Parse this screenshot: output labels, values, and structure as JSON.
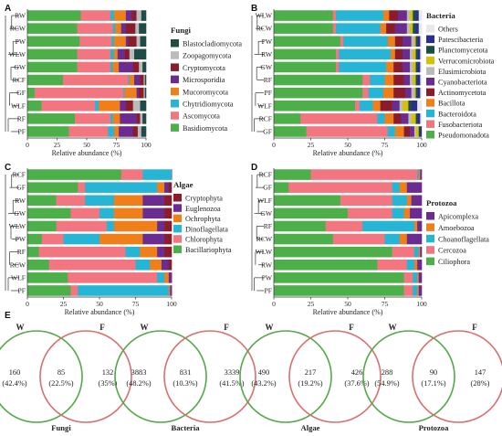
{
  "panel_labels": [
    "A",
    "B",
    "C",
    "D",
    "E"
  ],
  "axis_xlabel": "Relative abundance (%)",
  "ticks": [
    "0",
    "25",
    "50",
    "75",
    "100"
  ],
  "chart_data": [
    {
      "id": "A",
      "type": "bar",
      "orientation": "horizontal",
      "stacked": true,
      "title": "Fungi",
      "xlabel": "Relative abundance (%)",
      "xlim": [
        0,
        100
      ],
      "categories": [
        "RW",
        "RCW",
        "PW",
        "WLW",
        "GW",
        "RCF",
        "GF",
        "WLF",
        "RF",
        "PF"
      ],
      "legend_placement": "right",
      "series": [
        {
          "name": "Basidiomycota",
          "color": "#4daf4a",
          "values": [
            45,
            42,
            44,
            42,
            42,
            30,
            6,
            12,
            40,
            35
          ]
        },
        {
          "name": "Ascomycota",
          "color": "#f27580",
          "values": [
            25,
            30,
            27,
            28,
            28,
            55,
            75,
            45,
            30,
            33
          ]
        },
        {
          "name": "Chytridiomycota",
          "color": "#26b5d4",
          "values": [
            3,
            2,
            2,
            3,
            2,
            1,
            1,
            3,
            2,
            5
          ]
        },
        {
          "name": "Mucoromycota",
          "color": "#f07f1a",
          "values": [
            10,
            5,
            10,
            3,
            5,
            4,
            10,
            18,
            6,
            4
          ]
        },
        {
          "name": "Microsporidia",
          "color": "#6a2c91",
          "values": [
            5,
            4,
            2,
            6,
            12,
            5,
            2,
            5,
            14,
            12
          ]
        },
        {
          "name": "Cryptomycota",
          "color": "#8b1c2c",
          "values": [
            4,
            8,
            7,
            4,
            5,
            3,
            4,
            6,
            3,
            4
          ]
        },
        {
          "name": "Zoopagomycota",
          "color": "#bbbbbb",
          "values": [
            4,
            3,
            3,
            4,
            3,
            1,
            1,
            6,
            2,
            3
          ]
        },
        {
          "name": "Blastocladiomycota",
          "color": "#1f4d46",
          "values": [
            4,
            6,
            5,
            10,
            3,
            1,
            1,
            5,
            3,
            4
          ]
        }
      ]
    },
    {
      "id": "B",
      "type": "bar",
      "orientation": "horizontal",
      "stacked": true,
      "title": "Bacteria",
      "xlabel": "Relative abundance (%)",
      "xlim": [
        0,
        100
      ],
      "categories": [
        "WLW",
        "RCW",
        "PW",
        "RW",
        "GW",
        "RF",
        "PF",
        "WLF",
        "RCF",
        "GF"
      ],
      "legend_placement": "right",
      "series": [
        {
          "name": "Pseudomonadota",
          "color": "#4daf4a",
          "values": [
            40,
            40,
            45,
            42,
            42,
            60,
            60,
            55,
            18,
            22
          ]
        },
        {
          "name": "Fusobacteriota",
          "color": "#f27580",
          "values": [
            2,
            2,
            2,
            2,
            2,
            5,
            4,
            3,
            52,
            55
          ]
        },
        {
          "name": "Bacteroidota",
          "color": "#26b5d4",
          "values": [
            32,
            30,
            30,
            35,
            32,
            10,
            10,
            9,
            5,
            5
          ]
        },
        {
          "name": "Bacillota",
          "color": "#f07f1a",
          "values": [
            4,
            4,
            5,
            3,
            5,
            6,
            7,
            5,
            6,
            6
          ]
        },
        {
          "name": "Actinomycetota",
          "color": "#8b1c2c",
          "values": [
            6,
            6,
            5,
            5,
            6,
            7,
            8,
            8,
            5,
            4
          ]
        },
        {
          "name": "Cyanobacteriota",
          "color": "#6a2c91",
          "values": [
            6,
            8,
            6,
            5,
            5,
            4,
            4,
            5,
            5,
            3
          ]
        },
        {
          "name": "Elusimicrobiota",
          "color": "#bbbbbb",
          "values": [
            2,
            2,
            2,
            2,
            2,
            2,
            2,
            2,
            2,
            1
          ]
        },
        {
          "name": "Verrucomicrobiota",
          "color": "#d4c20a",
          "values": [
            2,
            2,
            1,
            2,
            2,
            2,
            1,
            4,
            3,
            2
          ]
        },
        {
          "name": "Planctomycetota",
          "color": "#1f4d46",
          "values": [
            2,
            2,
            1,
            1,
            1,
            1,
            1,
            2,
            1,
            1
          ]
        },
        {
          "name": "Patescibacteria",
          "color": "#2a2f8f",
          "values": [
            2,
            2,
            2,
            2,
            2,
            2,
            2,
            4,
            2,
            1
          ]
        },
        {
          "name": "Others",
          "color": "#e8e8e8",
          "values": [
            2,
            2,
            1,
            1,
            1,
            1,
            1,
            3,
            1,
            0
          ]
        }
      ]
    },
    {
      "id": "C",
      "type": "bar",
      "orientation": "horizontal",
      "stacked": true,
      "title": "Algae",
      "xlabel": "Relative abundance (%)",
      "xlim": [
        0,
        100
      ],
      "categories": [
        "RCF",
        "GF",
        "RW",
        "GW",
        "WLW",
        "PW",
        "RF",
        "RCW",
        "WLF",
        "PF"
      ],
      "legend_placement": "right",
      "series": [
        {
          "name": "Bacillariophyta",
          "color": "#4daf4a",
          "values": [
            65,
            35,
            20,
            30,
            20,
            10,
            8,
            15,
            28,
            30
          ]
        },
        {
          "name": "Chlorophyta",
          "color": "#f27580",
          "values": [
            15,
            5,
            20,
            20,
            35,
            15,
            60,
            60,
            62,
            5
          ]
        },
        {
          "name": "Dinoflagellata",
          "color": "#26b5d4",
          "values": [
            20,
            50,
            20,
            10,
            5,
            25,
            10,
            10,
            5,
            63
          ]
        },
        {
          "name": "Ochrophyta",
          "color": "#f07f1a",
          "values": [
            0,
            5,
            20,
            20,
            30,
            30,
            12,
            8,
            3,
            1
          ]
        },
        {
          "name": "Euglenozoa",
          "color": "#6a2c91",
          "values": [
            0,
            3,
            15,
            15,
            5,
            15,
            5,
            5,
            2,
            1
          ]
        },
        {
          "name": "Cryptophyta",
          "color": "#8b1c2c",
          "values": [
            0,
            2,
            5,
            5,
            5,
            5,
            5,
            2,
            0,
            0
          ]
        }
      ]
    },
    {
      "id": "D",
      "type": "bar",
      "orientation": "horizontal",
      "stacked": true,
      "title": "Protozoa",
      "xlabel": "Relative abundance (%)",
      "xlim": [
        0,
        100
      ],
      "categories": [
        "RCF",
        "GF",
        "WLF",
        "GW",
        "RF",
        "RCW",
        "WLW",
        "RW",
        "PW",
        "PF"
      ],
      "legend_placement": "right",
      "series": [
        {
          "name": "Ciliophora",
          "color": "#4daf4a",
          "values": [
            25,
            10,
            45,
            50,
            35,
            40,
            80,
            70,
            88,
            88
          ]
        },
        {
          "name": "Cercozoa",
          "color": "#f27580",
          "values": [
            72,
            70,
            35,
            30,
            25,
            35,
            15,
            20,
            6,
            6
          ]
        },
        {
          "name": "Choanoflagellata",
          "color": "#26b5d4",
          "values": [
            1,
            5,
            10,
            8,
            35,
            10,
            3,
            5,
            3,
            3
          ]
        },
        {
          "name": "Amoebozoa",
          "color": "#f07f1a",
          "values": [
            1,
            5,
            3,
            4,
            2,
            5,
            1,
            2,
            1,
            1
          ]
        },
        {
          "name": "Apicomplexa",
          "color": "#6a2c91",
          "values": [
            1,
            10,
            7,
            8,
            3,
            10,
            1,
            3,
            2,
            2
          ]
        }
      ]
    },
    {
      "id": "E",
      "type": "venn",
      "sets": [
        {
          "title": "Fungi",
          "left_label": "W",
          "right_label": "F",
          "left": [
            "160",
            "(42.4%)"
          ],
          "overlap": [
            "85",
            "(22.5%)"
          ],
          "right": [
            "132",
            "(35%)"
          ]
        },
        {
          "title": "Bacteria",
          "left_label": "W",
          "right_label": "F",
          "left": [
            "3883",
            "(48.2%)"
          ],
          "overlap": [
            "831",
            "(10.3%)"
          ],
          "right": [
            "3339",
            "(41.5%)"
          ]
        },
        {
          "title": "Algae",
          "left_label": "W",
          "right_label": "F",
          "left": [
            "490",
            "(43.2%)"
          ],
          "overlap": [
            "217",
            "(19.2%)"
          ],
          "right": [
            "426",
            "(37.6%)"
          ]
        },
        {
          "title": "Protozoa",
          "left_label": "W",
          "right_label": "F",
          "left": [
            "288",
            "(54.9%)"
          ],
          "overlap": [
            "90",
            "(17.1%)"
          ],
          "right": [
            "147",
            "(28%)"
          ]
        }
      ],
      "colors": {
        "W": "#55a84a",
        "F": "#d9706f"
      }
    }
  ]
}
